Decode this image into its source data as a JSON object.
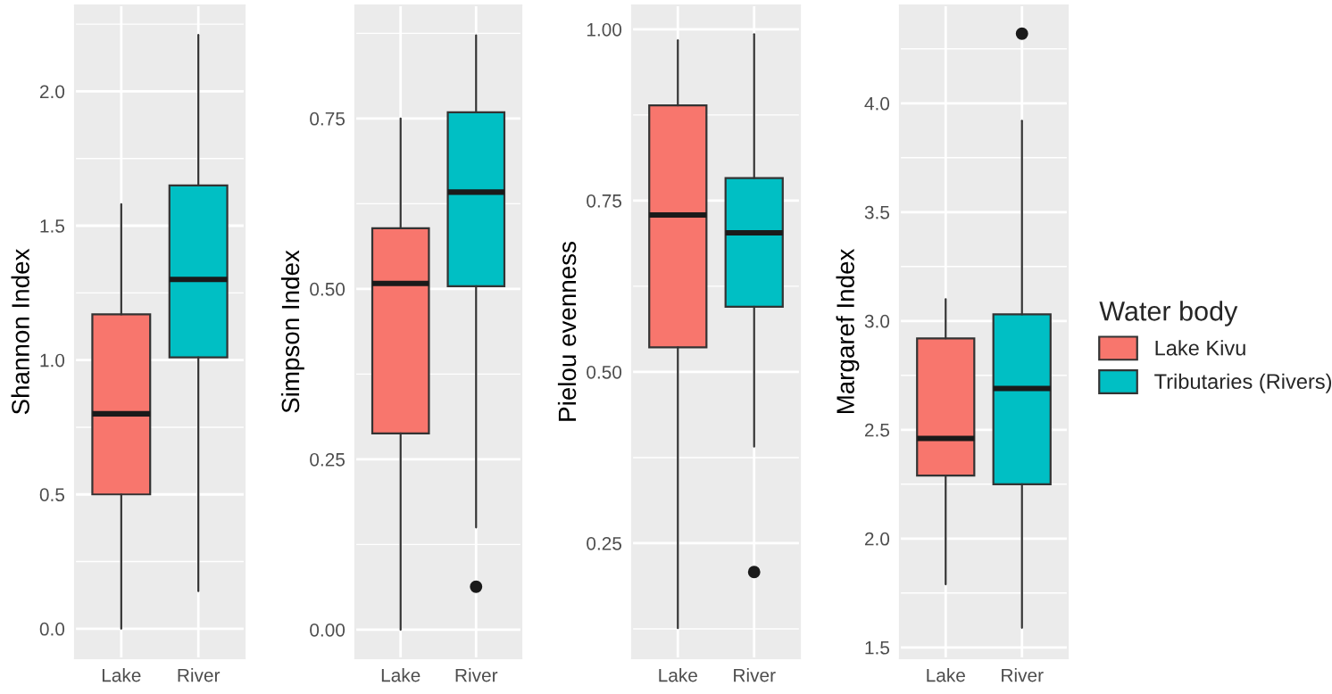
{
  "chart_data": [
    {
      "type": "box",
      "ylabel": "Shannon Index",
      "categories": [
        "Lake",
        "River"
      ],
      "ylim": [
        -0.11,
        2.32
      ],
      "yticks": [
        {
          "value": 0,
          "label": "0.0"
        },
        {
          "value": 0.5,
          "label": "0.5"
        },
        {
          "value": 1,
          "label": "1.0"
        },
        {
          "value": 1.5,
          "label": "1.5"
        },
        {
          "value": 2,
          "label": "2.0"
        }
      ],
      "grid": true,
      "series": [
        {
          "color": "#f8766d",
          "boxes": [
            {
              "low": 0.0,
              "q1": 0.5,
              "median": 0.8,
              "q3": 1.17,
              "high": 1.58
            },
            null
          ]
        },
        {
          "color": "#00bfc4",
          "boxes": [
            null,
            {
              "low": 0.14,
              "q1": 1.01,
              "median": 1.3,
              "q3": 1.65,
              "high": 2.21
            }
          ]
        }
      ]
    },
    {
      "type": "box",
      "ylabel": "Simpson Index",
      "categories": [
        "Lake",
        "River"
      ],
      "ylim": [
        -0.042,
        0.916
      ],
      "yticks": [
        {
          "value": 0,
          "label": "0.00"
        },
        {
          "value": 0.25,
          "label": "0.25"
        },
        {
          "value": 0.5,
          "label": "0.50"
        },
        {
          "value": 0.75,
          "label": "0.75"
        }
      ],
      "grid": true,
      "series": [
        {
          "color": "#f8766d",
          "boxes": [
            {
              "low": 0.0,
              "q1": 0.288,
              "median": 0.508,
              "q3": 0.589,
              "high": 0.75
            },
            null
          ]
        },
        {
          "color": "#00bfc4",
          "boxes": [
            null,
            {
              "low": 0.15,
              "q1": 0.504,
              "median": 0.642,
              "q3": 0.759,
              "high": 0.872,
              "outliers": [
                0.063
              ]
            }
          ]
        }
      ]
    },
    {
      "type": "box",
      "ylabel": "Pielou evenness",
      "categories": [
        "Lake",
        "River"
      ],
      "ylim": [
        0.082,
        1.035
      ],
      "yticks": [
        {
          "value": 0.25,
          "label": "0.25"
        },
        {
          "value": 0.5,
          "label": "0.50"
        },
        {
          "value": 0.75,
          "label": "0.75"
        },
        {
          "value": 1,
          "label": "1.00"
        }
      ],
      "grid": true,
      "series": [
        {
          "color": "#f8766d",
          "boxes": [
            {
              "low": 0.126,
              "q1": 0.536,
              "median": 0.729,
              "q3": 0.889,
              "high": 0.984
            },
            null
          ]
        },
        {
          "color": "#00bfc4",
          "boxes": [
            null,
            {
              "low": 0.391,
              "q1": 0.595,
              "median": 0.703,
              "q3": 0.783,
              "high": 0.993,
              "outliers": [
                0.208
              ]
            }
          ]
        }
      ]
    },
    {
      "type": "box",
      "ylabel": "Margaref Index",
      "categories": [
        "Lake",
        "River"
      ],
      "ylim": [
        1.45,
        4.45
      ],
      "yticks": [
        {
          "value": 1.5,
          "label": "1.5"
        },
        {
          "value": 2,
          "label": "2.0"
        },
        {
          "value": 2.5,
          "label": "2.5"
        },
        {
          "value": 3,
          "label": "3.0"
        },
        {
          "value": 3.5,
          "label": "3.5"
        },
        {
          "value": 4,
          "label": "4.0"
        }
      ],
      "grid": true,
      "legend": "right",
      "legend_title": "Water body",
      "series": [
        {
          "name": "Lake Kivu",
          "color": "#f8766d",
          "boxes": [
            {
              "low": 1.79,
              "q1": 2.29,
              "median": 2.46,
              "q3": 2.92,
              "high": 3.1
            },
            null
          ]
        },
        {
          "name": "Tributaries (Rivers)",
          "color": "#00bfc4",
          "boxes": [
            null,
            {
              "low": 1.59,
              "q1": 2.25,
              "median": 2.69,
              "q3": 3.03,
              "high": 3.92,
              "outliers": [
                4.32
              ]
            }
          ]
        }
      ]
    }
  ]
}
